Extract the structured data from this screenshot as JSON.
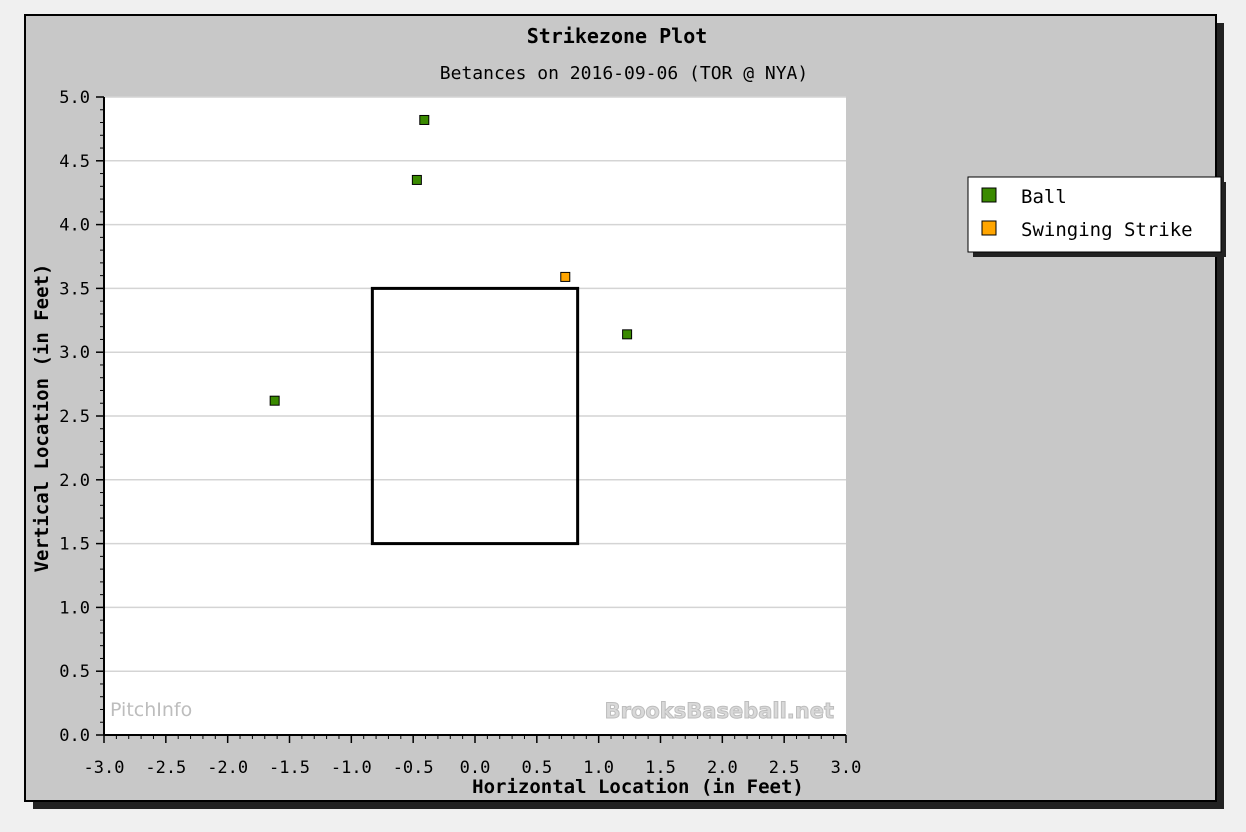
{
  "chart_data": {
    "type": "scatter",
    "title": "Strikezone Plot",
    "subtitle": "Betances on 2016-09-06 (TOR @ NYA)",
    "xlabel": "Horizontal Location (in Feet)",
    "ylabel": "Vertical Location (in Feet)",
    "xlim": [
      -3.0,
      3.0
    ],
    "ylim": [
      0.0,
      5.0
    ],
    "x_ticks": [
      "-3.0",
      "-2.5",
      "-2.0",
      "-1.5",
      "-1.0",
      "-0.5",
      "0.0",
      "0.5",
      "1.0",
      "1.5",
      "2.0",
      "2.5",
      "3.0"
    ],
    "y_ticks": [
      "0.0",
      "0.5",
      "1.0",
      "1.5",
      "2.0",
      "2.5",
      "3.0",
      "3.5",
      "4.0",
      "4.5",
      "5.0"
    ],
    "grid": "horizontal",
    "legend_position": "right",
    "strike_zone": {
      "x": [
        -0.83,
        0.83
      ],
      "y": [
        1.5,
        3.5
      ]
    },
    "series": [
      {
        "name": "Ball",
        "color": "#3a8a00",
        "points": [
          {
            "x": -0.41,
            "y": 4.82
          },
          {
            "x": -0.47,
            "y": 4.35
          },
          {
            "x": 1.23,
            "y": 3.14
          },
          {
            "x": -1.62,
            "y": 2.62
          }
        ]
      },
      {
        "name": "Swinging Strike",
        "color": "#ffa500",
        "points": [
          {
            "x": 0.73,
            "y": 3.59
          }
        ]
      }
    ],
    "watermarks": {
      "left": "PitchInfo",
      "right": "BrooksBaseball.net"
    }
  }
}
